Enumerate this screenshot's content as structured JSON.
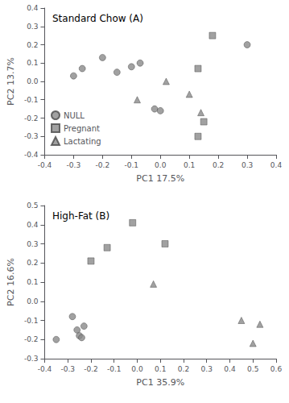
{
  "chart_data": [
    {
      "type": "scatter",
      "title": "Standard Chow (A)",
      "xlabel": "PC1 17.5%",
      "ylabel": "PC2 13.7%",
      "xlim": [
        -0.4,
        0.4
      ],
      "ylim": [
        -0.4,
        0.4
      ],
      "xticks": [
        -0.4,
        -0.3,
        -0.2,
        -0.1,
        {
          "value": 0,
          "label": "0.0"
        },
        0.1,
        0.2,
        0.3,
        0.4
      ],
      "yticks": [
        -0.4,
        -0.3,
        -0.2,
        -0.1,
        {
          "value": 0,
          "label": "0.0"
        },
        0.1,
        0.2,
        0.3,
        0.4
      ],
      "grid": false,
      "legend": "lower left",
      "series": [
        {
          "name": "NULL",
          "color": "#898989",
          "marker": "circle",
          "x": [
            -0.3,
            -0.27,
            -0.2,
            -0.15,
            -0.1,
            -0.07,
            -0.02,
            0.0,
            0.3
          ],
          "values": [
            0.03,
            0.07,
            0.13,
            0.05,
            0.08,
            0.1,
            -0.15,
            -0.16,
            0.2
          ]
        },
        {
          "name": "Pregnant",
          "color": "#898989",
          "marker": "square",
          "x": [
            0.18,
            0.13,
            0.15,
            0.13
          ],
          "values": [
            0.25,
            0.07,
            -0.22,
            -0.3
          ]
        },
        {
          "name": "Lactating",
          "color": "#898989",
          "marker": "triangle",
          "x": [
            -0.08,
            0.02,
            0.1,
            0.14
          ],
          "values": [
            -0.1,
            0.0,
            -0.07,
            -0.17
          ]
        }
      ]
    },
    {
      "type": "scatter",
      "title": "High-Fat (B)",
      "xlabel": "PC1 35.9%",
      "ylabel": "PC2 16.6%",
      "xlim": [
        -0.4,
        0.6
      ],
      "ylim": [
        -0.3,
        0.5
      ],
      "xticks": [
        -0.4,
        -0.3,
        -0.2,
        -0.1,
        {
          "value": 0,
          "label": "0.0"
        },
        0.1,
        0.2,
        0.3,
        0.4,
        0.5,
        0.6
      ],
      "yticks": [
        -0.3,
        -0.2,
        -0.1,
        {
          "value": 0,
          "label": "0.0"
        },
        0.1,
        0.2,
        0.3,
        0.4,
        0.5
      ],
      "grid": false,
      "series": [
        {
          "name": "NULL",
          "color": "#898989",
          "marker": "circle",
          "x": [
            -0.35,
            -0.28,
            -0.26,
            -0.25,
            -0.24,
            -0.23
          ],
          "values": [
            -0.2,
            -0.08,
            -0.15,
            -0.18,
            -0.19,
            -0.13
          ]
        },
        {
          "name": "Pregnant",
          "color": "#898989",
          "marker": "square",
          "x": [
            -0.2,
            -0.13,
            -0.02,
            0.12
          ],
          "values": [
            0.21,
            0.28,
            0.41,
            0.3
          ]
        },
        {
          "name": "Lactating",
          "color": "#898989",
          "marker": "triangle",
          "x": [
            0.07,
            0.45,
            0.5,
            0.53
          ],
          "values": [
            0.09,
            -0.1,
            -0.22,
            -0.12
          ]
        }
      ]
    }
  ]
}
